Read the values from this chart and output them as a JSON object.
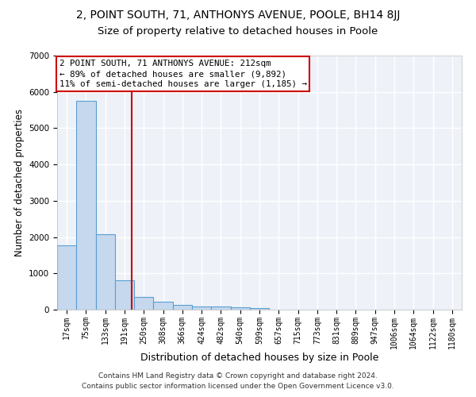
{
  "title": "2, POINT SOUTH, 71, ANTHONYS AVENUE, POOLE, BH14 8JJ",
  "subtitle": "Size of property relative to detached houses in Poole",
  "xlabel": "Distribution of detached houses by size in Poole",
  "ylabel": "Number of detached properties",
  "bar_color": "#c5d8ed",
  "bar_edge_color": "#5a9fd4",
  "bar_edge_width": 0.8,
  "categories": [
    "17sqm",
    "75sqm",
    "133sqm",
    "191sqm",
    "250sqm",
    "308sqm",
    "366sqm",
    "424sqm",
    "482sqm",
    "540sqm",
    "599sqm",
    "657sqm",
    "715sqm",
    "773sqm",
    "831sqm",
    "889sqm",
    "947sqm",
    "1006sqm",
    "1064sqm",
    "1122sqm",
    "1180sqm"
  ],
  "values": [
    1780,
    5750,
    2080,
    800,
    360,
    220,
    130,
    80,
    80,
    60,
    50,
    0,
    0,
    0,
    0,
    0,
    0,
    0,
    0,
    0,
    0
  ],
  "ylim": [
    0,
    7000
  ],
  "yticks": [
    0,
    1000,
    2000,
    3000,
    4000,
    5000,
    6000,
    7000
  ],
  "annotation_line1": "2 POINT SOUTH, 71 ANTHONYS AVENUE: 212sqm",
  "annotation_line2": "← 89% of detached houses are smaller (9,892)",
  "annotation_line3": "11% of semi-detached houses are larger (1,185) →",
  "annotation_box_color": "#ffffff",
  "annotation_box_edge_color": "#cc0000",
  "footer_line1": "Contains HM Land Registry data © Crown copyright and database right 2024.",
  "footer_line2": "Contains public sector information licensed under the Open Government Licence v3.0.",
  "background_color": "#eef2f8",
  "grid_color": "#ffffff",
  "title_fontsize": 10,
  "subtitle_fontsize": 9.5,
  "tick_fontsize": 7,
  "ylabel_fontsize": 8.5,
  "xlabel_fontsize": 9,
  "annotation_fontsize": 7.8,
  "footer_fontsize": 6.5
}
